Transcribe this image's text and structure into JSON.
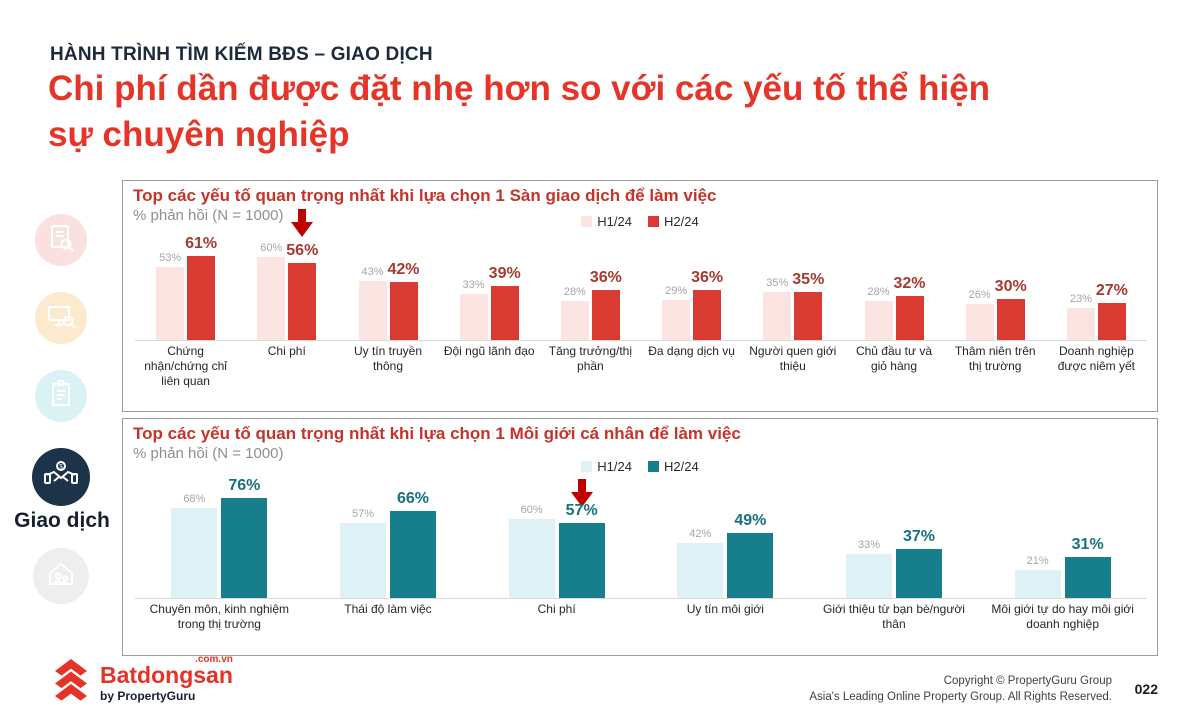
{
  "slide": {
    "kicker": "HÀNH TRÌNH TÌM KIẾM BĐS – GIAO DỊCH",
    "title_line1": "Chi phí dần được đặt nhẹ hơn so với các yếu tố thể hiện",
    "title_line2": "sự chuyên nghiệp",
    "page_number": "022"
  },
  "sidebar": {
    "active_label": "Giao dịch",
    "items": [
      {
        "icon": "document-search-icon",
        "state": "inactive",
        "color": "#f6c9c5"
      },
      {
        "icon": "screen-search-icon",
        "state": "inactive",
        "color": "#f9ddae"
      },
      {
        "icon": "checklist-icon",
        "state": "inactive",
        "color": "#c3eaee"
      },
      {
        "icon": "handshake-icon",
        "state": "active",
        "color": "#1d3349",
        "label": "Giao dịch"
      },
      {
        "icon": "house-family-icon",
        "state": "inactive",
        "color": "#ebebeb"
      }
    ]
  },
  "footer": {
    "logo_brand": "Batdongsan",
    "logo_domain": ".com.vn",
    "logo_byline": "by PropertyGuru",
    "copyright_line1": "Copyright © PropertyGuru Group",
    "copyright_line2": "Asia's Leading Online Property Group. All Rights Reserved."
  },
  "chart_data": [
    {
      "type": "bar",
      "title": "Top các yếu tố quan trọng nhất khi lựa chọn 1 Sàn giao dịch để làm việc",
      "subtitle": "% phản hồi (N = 1000)",
      "legend_position": "top-center",
      "grid": false,
      "ylim": [
        0,
        70
      ],
      "unit": "%",
      "colors": {
        "h1": "#fbe4e2",
        "h2": "#d93a31",
        "h2_label": "#a53a30"
      },
      "annotation": {
        "type": "decrease-arrow",
        "category_index": 1,
        "color": "#c00000"
      },
      "categories": [
        "Chứng nhận/chứng chỉ liên quan",
        "Chi phí",
        "Uy tín truyền thông",
        "Đội ngũ lãnh đạo",
        "Tăng trưởng/thị phần",
        "Đa dạng dịch vụ",
        "Người quen giới thiệu",
        "Chủ đầu tư và giỏ hàng",
        "Thâm niên trên thị trường",
        "Doanh nghiệp được niêm yết"
      ],
      "series": [
        {
          "name": "H1/24",
          "values": [
            53,
            60,
            43,
            33,
            28,
            29,
            35,
            28,
            26,
            23
          ]
        },
        {
          "name": "H2/24",
          "values": [
            61,
            56,
            42,
            39,
            36,
            36,
            35,
            32,
            30,
            27
          ]
        }
      ]
    },
    {
      "type": "bar",
      "title": "Top các yếu tố quan trọng nhất khi lựa chọn 1 Môi giới cá nhân để làm việc",
      "subtitle": "% phản hồi (N = 1000)",
      "legend_position": "top-center",
      "grid": false,
      "ylim": [
        0,
        80
      ],
      "unit": "%",
      "colors": {
        "h1": "#def2f5",
        "h2": "#177f8b",
        "h2_label": "#18717d"
      },
      "annotation": {
        "type": "decrease-arrow",
        "category_index": 2,
        "color": "#c00000"
      },
      "categories": [
        "Chuyên môn, kinh nghiệm trong thị trường",
        "Thái độ làm việc",
        "Chi phí",
        "Uy tín môi giới",
        "Giới thiệu từ bạn bè/người thân",
        "Môi giới tự do hay môi giới doanh nghiệp"
      ],
      "series": [
        {
          "name": "H1/24",
          "values": [
            68,
            57,
            60,
            42,
            33,
            21
          ]
        },
        {
          "name": "H2/24",
          "values": [
            76,
            66,
            57,
            49,
            37,
            31
          ]
        }
      ]
    }
  ]
}
